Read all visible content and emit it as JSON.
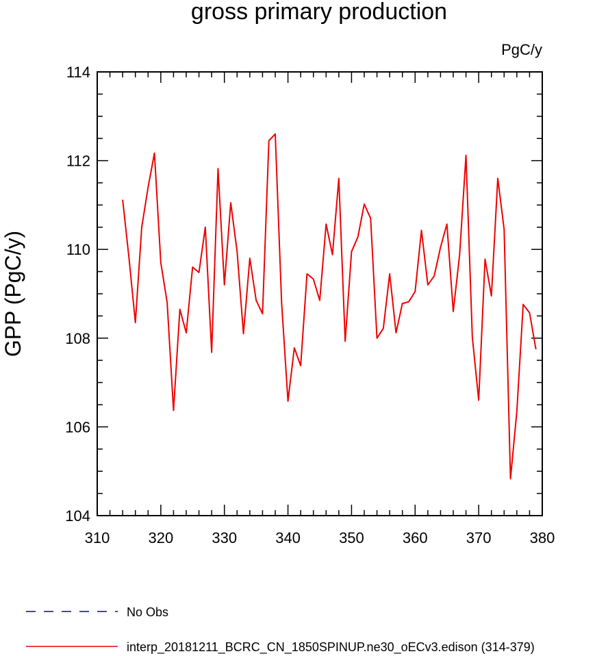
{
  "chart_data": {
    "type": "line",
    "title": "gross primary production",
    "units_label": "PgC/y",
    "xlabel": "",
    "ylabel": "GPP  (PgC/y)",
    "xlim": [
      310,
      380
    ],
    "ylim": [
      104,
      114
    ],
    "x_ticks": [
      310,
      320,
      330,
      340,
      350,
      360,
      370,
      380
    ],
    "y_ticks": [
      104,
      106,
      108,
      110,
      112,
      114
    ],
    "grid": false,
    "legend_position": "bottom",
    "series": [
      {
        "name": "No Obs",
        "color": "#0000cc",
        "style": "dashed",
        "x": [],
        "y": []
      },
      {
        "name": "interp_20181211_BCRC_CN_1850SPINUP.ne30_oECv3.edison (314-379)",
        "color": "#ee0000",
        "style": "solid",
        "x": [
          314,
          315,
          316,
          317,
          318,
          319,
          320,
          321,
          322,
          323,
          324,
          325,
          326,
          327,
          328,
          329,
          330,
          331,
          332,
          333,
          334,
          335,
          336,
          337,
          338,
          339,
          340,
          341,
          342,
          343,
          344,
          345,
          346,
          347,
          348,
          349,
          350,
          351,
          352,
          353,
          354,
          355,
          356,
          357,
          358,
          359,
          360,
          361,
          362,
          363,
          364,
          365,
          366,
          367,
          368,
          369,
          370,
          371,
          372,
          373,
          374,
          375,
          376,
          377,
          378,
          379
        ],
        "y": [
          111.12,
          109.8,
          108.35,
          110.5,
          111.4,
          112.17,
          109.7,
          108.8,
          106.37,
          108.65,
          108.12,
          109.6,
          109.48,
          110.5,
          107.68,
          111.82,
          109.2,
          111.05,
          109.95,
          108.1,
          109.8,
          108.85,
          108.55,
          112.45,
          112.6,
          108.8,
          106.58,
          107.78,
          107.38,
          109.45,
          109.33,
          108.85,
          110.57,
          109.88,
          111.6,
          107.93,
          109.95,
          110.28,
          111.02,
          110.7,
          108.0,
          108.22,
          109.45,
          108.12,
          108.78,
          108.82,
          109.05,
          110.43,
          109.2,
          109.4,
          110.05,
          110.57,
          108.6,
          109.88,
          112.12,
          108.02,
          106.6,
          109.78,
          108.95,
          111.6,
          110.45,
          104.83,
          106.35,
          108.76,
          108.57,
          107.75
        ]
      }
    ]
  }
}
